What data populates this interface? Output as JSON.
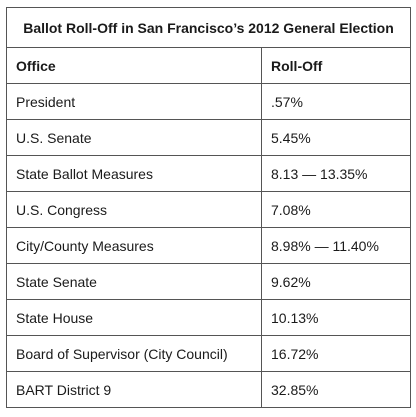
{
  "table": {
    "title": "Ballot Roll-Off in San Francisco’s 2012 General Election",
    "headers": [
      "Office",
      "Roll-Off"
    ],
    "rows": [
      [
        "President",
        ".57%"
      ],
      [
        "U.S. Senate",
        "5.45%"
      ],
      [
        "State Ballot Measures",
        "8.13 — 13.35%"
      ],
      [
        "U.S. Congress",
        "7.08%"
      ],
      [
        "City/County Measures",
        "8.98% — 11.40%"
      ],
      [
        "State Senate",
        "9.62%"
      ],
      [
        "State House",
        "10.13%"
      ],
      [
        "Board of Supervisor (City Council)",
        "16.72%"
      ],
      [
        "BART District 9",
        "32.85%"
      ]
    ]
  }
}
